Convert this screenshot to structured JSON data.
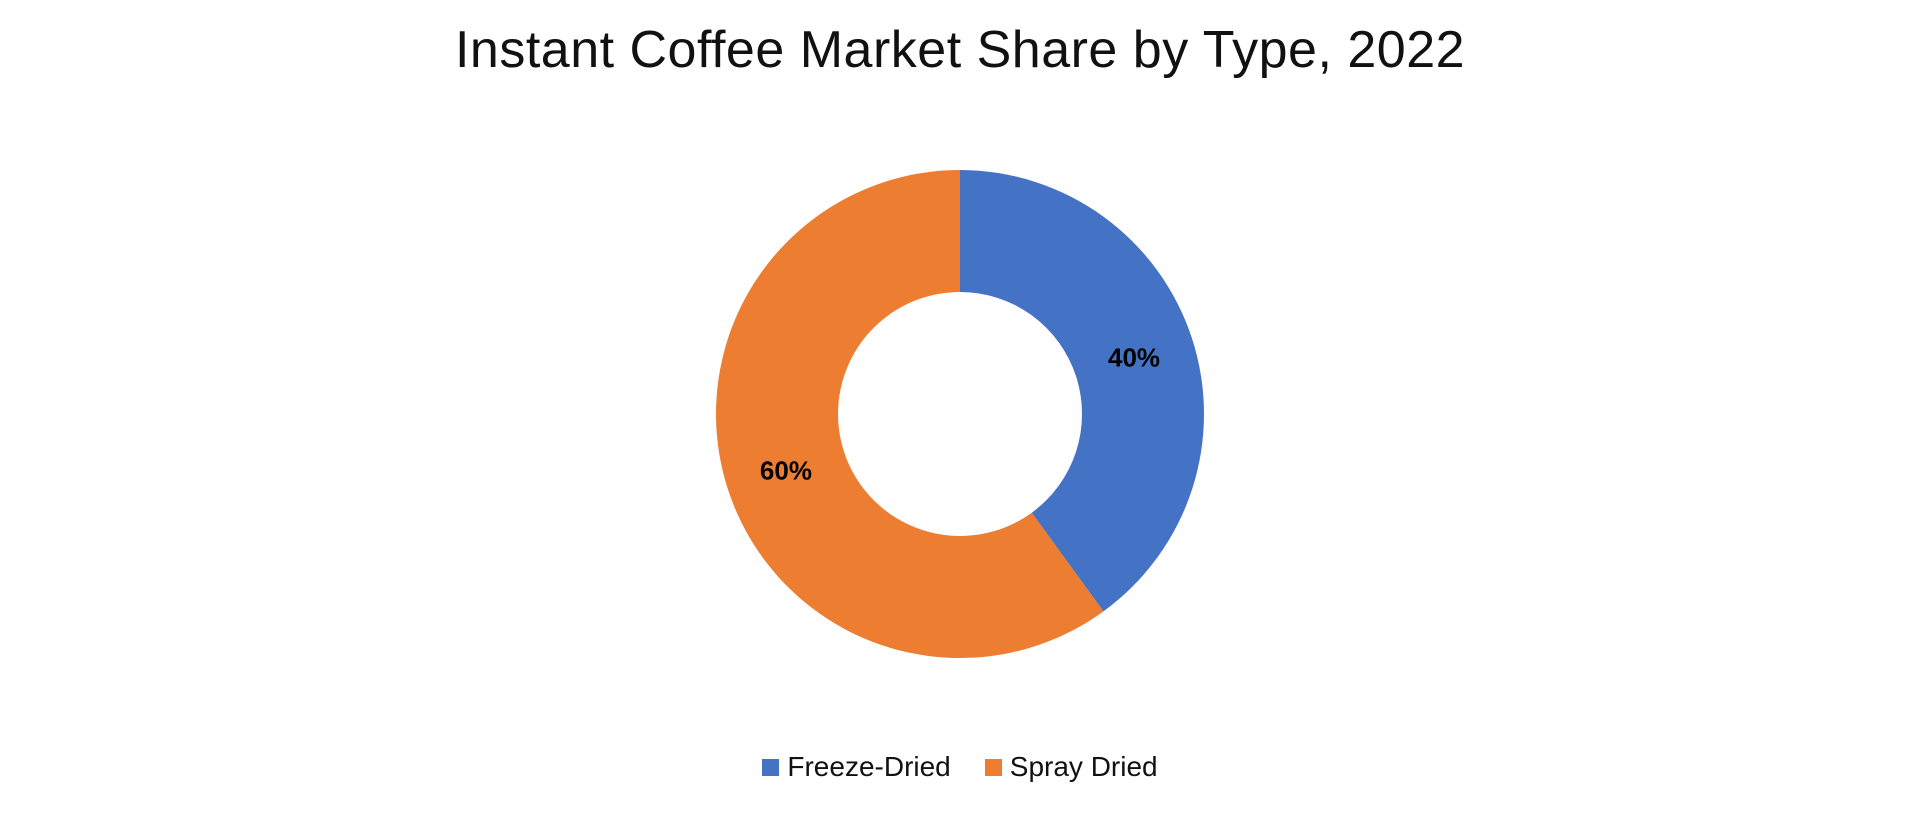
{
  "chart_data": {
    "type": "pie",
    "variant": "donut",
    "title": "Instant Coffee Market Share by Type, 2022",
    "categories": [
      "Freeze-Dried",
      "Spray Dried"
    ],
    "values": [
      40,
      60
    ],
    "value_labels": [
      "40%",
      "60%"
    ],
    "colors": [
      "#4472C4",
      "#ED7D31"
    ],
    "legend": {
      "placement": "bottom",
      "entries": [
        "Freeze-Dried",
        "Spray Dried"
      ]
    }
  }
}
